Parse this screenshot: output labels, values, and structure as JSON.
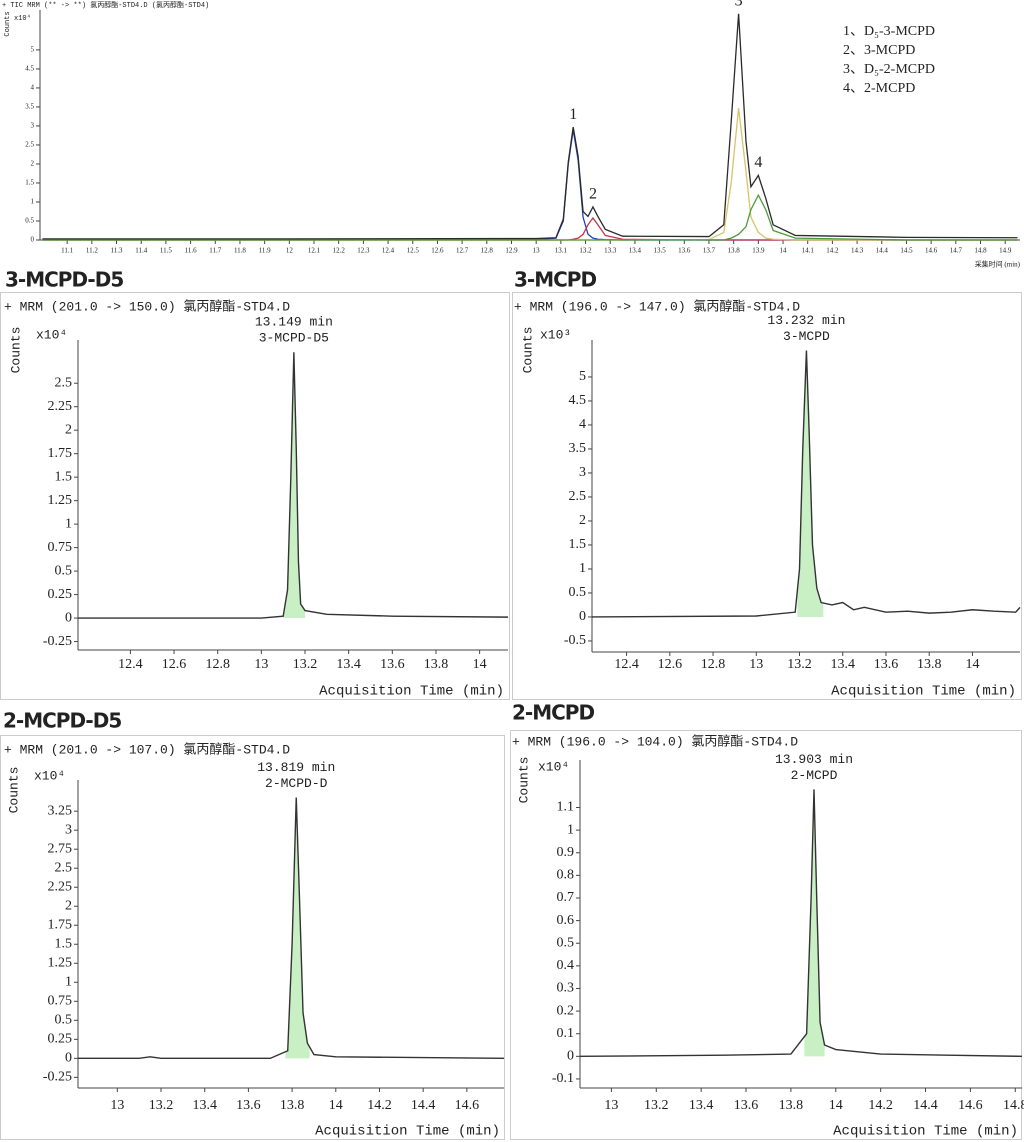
{
  "chart_data": [
    {
      "type": "line",
      "header": "+ TIC MRM (** -> **) 氯丙醇酯-STD4.D (氯丙醇酯-STD4)",
      "y_label": "Counts",
      "y_multiplier": "x10⁴",
      "x_label": "采集时间 (min)",
      "xlim": [
        10.99,
        14.96
      ],
      "ylim": [
        0,
        6.05
      ],
      "xticks": [
        11.1,
        11.2,
        11.3,
        11.4,
        11.5,
        11.6,
        11.7,
        11.8,
        11.9,
        12,
        12.1,
        12.2,
        12.3,
        12.4,
        12.5,
        12.6,
        12.7,
        12.8,
        12.9,
        13,
        13.1,
        13.2,
        13.3,
        13.4,
        13.5,
        13.6,
        13.7,
        13.8,
        13.9,
        14,
        14.1,
        14.2,
        14.3,
        14.4,
        14.5,
        14.6,
        14.7,
        14.8,
        14.9
      ],
      "yticks": [
        0,
        0.5,
        1,
        1.5,
        2,
        2.5,
        3,
        3.5,
        4,
        4.5,
        5
      ],
      "x": [
        11.0,
        12.0,
        13.0,
        13.08,
        13.11,
        13.13,
        13.15,
        13.17,
        13.19,
        13.21,
        13.23,
        13.25,
        13.28,
        13.35,
        13.7,
        13.76,
        13.79,
        13.82,
        13.85,
        13.87,
        13.9,
        13.93,
        13.96,
        14.05,
        14.5,
        14.95
      ],
      "series": [
        {
          "color": "#1f3fbf",
          "values": [
            0,
            0,
            0.01,
            0.05,
            0.5,
            2.0,
            2.9,
            2.1,
            0.6,
            0.15,
            0.05,
            0.02,
            0.01,
            0,
            0,
            0,
            0,
            0,
            0,
            0,
            0,
            0,
            0,
            0,
            0,
            0
          ]
        },
        {
          "color": "#c8324a",
          "values": [
            0,
            0,
            0,
            0,
            0,
            0,
            0.02,
            0.05,
            0.15,
            0.4,
            0.58,
            0.4,
            0.12,
            0.02,
            0,
            0,
            0,
            0,
            0,
            0,
            0,
            0,
            0,
            0,
            0,
            0
          ]
        },
        {
          "color": "#d9c36a",
          "values": [
            0,
            0,
            0,
            0,
            0,
            0,
            0,
            0,
            0,
            0,
            0,
            0,
            0,
            0,
            0.01,
            0.2,
            1.5,
            3.47,
            1.8,
            0.6,
            0.2,
            0.05,
            0.02,
            0,
            0,
            0
          ]
        },
        {
          "color": "#4a9a3c",
          "values": [
            0,
            0,
            0,
            0,
            0,
            0,
            0,
            0,
            0,
            0,
            0,
            0,
            0,
            0,
            0,
            0,
            0.05,
            0.15,
            0.35,
            0.8,
            1.18,
            0.8,
            0.25,
            0.05,
            0,
            0
          ]
        },
        {
          "color": "#2a2a2a",
          "values": [
            0.03,
            0.03,
            0.04,
            0.06,
            0.55,
            2.05,
            2.97,
            2.2,
            0.75,
            0.62,
            0.87,
            0.62,
            0.28,
            0.1,
            0.09,
            0.4,
            3.1,
            5.95,
            2.6,
            1.4,
            1.7,
            1.1,
            0.4,
            0.12,
            0.07,
            0.06
          ]
        }
      ],
      "annotations": [
        {
          "text": "1",
          "x": 13.15,
          "y": 2.97
        },
        {
          "text": "2",
          "x": 13.23,
          "y": 0.87
        },
        {
          "text": "3",
          "x": 13.82,
          "y": 5.95
        },
        {
          "text": "4",
          "x": 13.9,
          "y": 1.7
        }
      ],
      "legend_text": [
        "1、D₅-3-MCPD",
        "2、3-MCPD",
        "3、D₅-2-MCPD",
        "4、2-MCPD"
      ]
    },
    {
      "type": "line",
      "title": "3-MCPD-D5",
      "header": "+ MRM (201.0 -> 150.0) 氯丙醇酯-STD4.D",
      "y_label": "Counts",
      "y_multiplier": "x10⁴",
      "x_label": "Acquisition Time (min)",
      "peak_label": [
        "13.149 min",
        "3-MCPD-D5"
      ],
      "xlim": [
        12.16,
        14.13
      ],
      "ylim": [
        -0.34,
        2.96
      ],
      "xticks": [
        12.4,
        12.6,
        12.8,
        13,
        13.2,
        13.4,
        13.6,
        13.8,
        14
      ],
      "yticks": [
        -0.25,
        0,
        0.25,
        0.5,
        0.75,
        1,
        1.25,
        1.5,
        1.75,
        2,
        2.25,
        2.5
      ],
      "x": [
        12.16,
        13.0,
        13.1,
        13.12,
        13.135,
        13.149,
        13.16,
        13.17,
        13.18,
        13.2,
        13.3,
        13.6,
        14.13
      ],
      "series": [
        {
          "color": "#333333",
          "values": [
            0,
            0,
            0.02,
            0.3,
            1.5,
            2.83,
            1.8,
            0.6,
            0.15,
            0.08,
            0.04,
            0.02,
            0.01
          ]
        }
      ],
      "fill_color": "#c9efc4",
      "shaded_range": [
        13.1,
        13.2
      ]
    },
    {
      "type": "line",
      "title": "3-MCPD",
      "header": "+ MRM (196.0 -> 147.0) 氯丙醇酯-STD4.D",
      "y_label": "Counts",
      "y_multiplier": "x10³",
      "x_label": "Acquisition Time (min)",
      "peak_label": [
        "13.232 min",
        "3-MCPD"
      ],
      "xlim": [
        12.24,
        14.22
      ],
      "ylim": [
        -0.73,
        5.77
      ],
      "xticks": [
        12.4,
        12.6,
        12.8,
        13,
        13.2,
        13.4,
        13.6,
        13.8,
        14
      ],
      "yticks": [
        -0.5,
        0,
        0.5,
        1,
        1.5,
        2,
        2.5,
        3,
        3.5,
        4,
        4.5,
        5
      ],
      "x": [
        12.24,
        13.0,
        13.18,
        13.2,
        13.215,
        13.232,
        13.245,
        13.26,
        13.28,
        13.3,
        13.35,
        13.4,
        13.45,
        13.5,
        13.6,
        13.7,
        13.8,
        13.9,
        14.0,
        14.1,
        14.2,
        14.22
      ],
      "series": [
        {
          "color": "#333333",
          "values": [
            0,
            0.02,
            0.1,
            1.0,
            3.5,
            5.55,
            3.8,
            1.5,
            0.6,
            0.3,
            0.25,
            0.3,
            0.15,
            0.2,
            0.1,
            0.12,
            0.08,
            0.1,
            0.15,
            0.12,
            0.1,
            0.2
          ]
        }
      ],
      "fill_color": "#c9efc4",
      "shaded_range": [
        13.19,
        13.31
      ]
    },
    {
      "type": "line",
      "title": "2-MCPD-D5",
      "header": "+ MRM (201.0 -> 107.0) 氯丙醇酯-STD4.D",
      "y_label": "Counts",
      "y_multiplier": "x10⁴",
      "x_label": "Acquisition Time (min)",
      "peak_label": [
        "13.819 min",
        "2-MCPD-D"
      ],
      "xlim": [
        12.82,
        14.77
      ],
      "ylim": [
        -0.39,
        3.66
      ],
      "xticks": [
        13,
        13.2,
        13.4,
        13.6,
        13.8,
        14,
        14.2,
        14.4,
        14.6
      ],
      "yticks": [
        -0.25,
        0,
        0.25,
        0.5,
        0.75,
        1,
        1.25,
        1.5,
        1.75,
        2,
        2.25,
        2.5,
        2.75,
        3,
        3.25
      ],
      "x": [
        12.82,
        13.1,
        13.15,
        13.2,
        13.7,
        13.78,
        13.8,
        13.819,
        13.835,
        13.85,
        13.87,
        13.9,
        14.0,
        14.77
      ],
      "series": [
        {
          "color": "#333333",
          "values": [
            0,
            0,
            0.02,
            0,
            0,
            0.1,
            1.5,
            3.43,
            2.0,
            0.6,
            0.2,
            0.05,
            0.02,
            0
          ]
        }
      ],
      "fill_color": "#c9efc4",
      "shaded_range": [
        13.77,
        13.88
      ]
    },
    {
      "type": "line",
      "title": "2-MCPD",
      "header": "+ MRM (196.0 -> 104.0) 氯丙醇酯-STD4.D",
      "y_label": "Counts",
      "y_multiplier": "x10⁴",
      "x_label": "Acquisition Time (min)",
      "peak_label": [
        "13.903 min",
        "2-MCPD"
      ],
      "xlim": [
        12.86,
        14.83
      ],
      "ylim": [
        -0.14,
        1.31
      ],
      "xticks": [
        13,
        13.2,
        13.4,
        13.6,
        13.8,
        14,
        14.2,
        14.4,
        14.6,
        14.8
      ],
      "yticks": [
        -0.1,
        0,
        0.1,
        0.2,
        0.3,
        0.4,
        0.5,
        0.6,
        0.7,
        0.8,
        0.9,
        1,
        1.1
      ],
      "x": [
        12.86,
        13.5,
        13.8,
        13.87,
        13.89,
        13.903,
        13.915,
        13.93,
        13.95,
        14.0,
        14.2,
        14.5,
        14.83
      ],
      "series": [
        {
          "color": "#333333",
          "values": [
            0,
            0.005,
            0.01,
            0.1,
            0.7,
            1.18,
            0.7,
            0.15,
            0.05,
            0.03,
            0.01,
            0.005,
            0
          ]
        }
      ],
      "fill_color": "#c9efc4",
      "shaded_range": [
        13.86,
        13.95
      ]
    }
  ]
}
